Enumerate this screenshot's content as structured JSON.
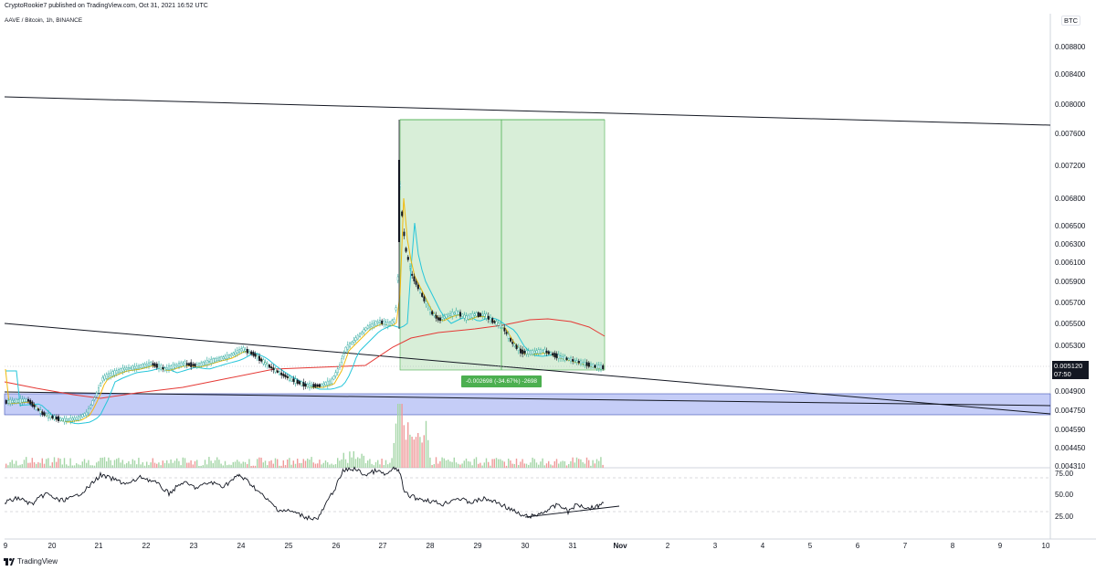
{
  "header": {
    "published_line": "CryptoRookie7 published on TradingView.com, Oct 31, 2021 16:52 UTC",
    "symbol_line": "AAVE / Bitcoin, 1h, BINANCE"
  },
  "price_axis": {
    "currency": "BTC",
    "labels": [
      "0.008800",
      "0.008400",
      "0.008000",
      "0.007600",
      "0.007200",
      "0.006800",
      "0.006500",
      "0.006300",
      "0.006100",
      "0.005900",
      "0.005700",
      "0.005500",
      "0.005300",
      "0.004900",
      "0.004750",
      "0.004590",
      "0.004450",
      "0.004310"
    ],
    "last_price": "0.005120",
    "countdown": "07:50"
  },
  "rsi_axis": {
    "labels": [
      "75.00",
      "50.00",
      "25.00"
    ]
  },
  "time_axis": {
    "labels": [
      "9",
      "20",
      "21",
      "22",
      "23",
      "24",
      "25",
      "26",
      "27",
      "28",
      "29",
      "30",
      "31",
      "Nov",
      "2",
      "3",
      "4",
      "5",
      "6",
      "7",
      "8",
      "9",
      "10"
    ]
  },
  "measure": {
    "label": "-0.002698 (-34.67%) -2698"
  },
  "footer": {
    "brand": "TradingView"
  },
  "colors": {
    "candle_up": "#26a69a",
    "candle_down": "#131722",
    "ma_fast": "#f0b90b",
    "ma_mid": "#26c6da",
    "ma_slow": "#e53935",
    "zone_fill": "#c5cdf7",
    "measure_fill": "#d8eed8",
    "measure_accent": "#4caf50"
  },
  "chart_data": {
    "type": "candlestick",
    "symbol": "AAVE / Bitcoin",
    "interval": "1h",
    "exchange": "BINANCE",
    "y_unit": "BTC",
    "x": [
      "20",
      "21",
      "22",
      "23",
      "24",
      "25",
      "26",
      "27",
      "28",
      "29",
      "30",
      "31"
    ],
    "close_approx": [
      0.00472,
      0.005,
      0.0051,
      0.00518,
      0.00528,
      0.00508,
      0.0049,
      0.00548,
      0.0057,
      0.00558,
      0.0052,
      0.00512
    ],
    "spike_high": 0.0078,
    "last_price": 0.00512,
    "rsi_levels": [
      75,
      50,
      25
    ],
    "measure": {
      "change": -0.002698,
      "percent": -34.67,
      "ticks": -2698
    }
  }
}
